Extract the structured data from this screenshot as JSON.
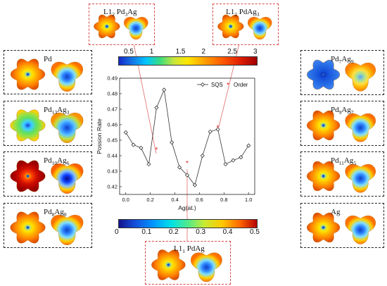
{
  "panels": {
    "left": [
      {
        "base": "Pd",
        "sub": ""
      },
      {
        "base": "Pd",
        "sub": "13",
        "base2": "Ag",
        "sub2": "3"
      },
      {
        "base": "Pd",
        "sub": "10",
        "base2": "Ag",
        "sub2": "6"
      },
      {
        "base": "Pd",
        "sub": "8",
        "base2": "Ag",
        "sub2": "8"
      }
    ],
    "right": [
      {
        "base": "Pd",
        "sub": "7",
        "base2": "Ag",
        "sub2": "9"
      },
      {
        "base": "Pd",
        "sub": "9",
        "base2": "Ag",
        "sub2": "7"
      },
      {
        "base": "Pd",
        "sub": "11",
        "base2": "Ag",
        "sub2": "5"
      },
      {
        "base": "Ag",
        "sub": ""
      }
    ],
    "top": [
      {
        "pre": "L1",
        "presub": "2",
        "base": " Pd",
        "sub": "3",
        "base2": "Ag",
        "sub2": ""
      },
      {
        "pre": "L1",
        "presub": "2",
        "base": " PdAg",
        "sub": "3",
        "base2": "",
        "sub2": ""
      }
    ],
    "bottom": {
      "pre": "L1",
      "presub": "1",
      "base": " PdAg",
      "sub": ""
    }
  },
  "colorbar_top": {
    "ticks": [
      "0.5",
      "1",
      "1.5",
      "2",
      "2.5",
      "3"
    ]
  },
  "colorbar_bottom": {
    "ticks": [
      "0",
      "0.1",
      "0.2",
      "0.3",
      "0.4",
      "0.5"
    ]
  },
  "chart_data": {
    "type": "scatter",
    "xlabel": "Ag(at.)",
    "ylabel": "Possion Rate",
    "xlim": [
      -0.05,
      1.05
    ],
    "ylim": [
      0.415,
      0.49
    ],
    "xticks": [
      "0.0",
      "0.2",
      "0.4",
      "0.6",
      "0.8",
      "1.0"
    ],
    "yticks": [
      "0.42",
      "0.43",
      "0.44",
      "0.45",
      "0.46",
      "0.47",
      "0.48",
      "0.49"
    ],
    "legend_position": "top-right",
    "series": [
      {
        "name": "SQS",
        "style": "line-diamond",
        "color": "#333333",
        "x": [
          0.0,
          0.0625,
          0.125,
          0.1875,
          0.25,
          0.3125,
          0.375,
          0.4375,
          0.5,
          0.5625,
          0.625,
          0.6875,
          0.75,
          0.8125,
          0.875,
          0.9375,
          1.0
        ],
        "y": [
          0.455,
          0.447,
          0.445,
          0.4345,
          0.471,
          0.4825,
          0.4485,
          0.4325,
          0.4275,
          0.421,
          0.44,
          0.4555,
          0.457,
          0.4345,
          0.437,
          0.439,
          0.4465
        ]
      },
      {
        "name": "Order",
        "style": "star",
        "color": "#e02020",
        "x": [
          0.25,
          0.5,
          0.75
        ],
        "y": [
          0.444,
          0.4355,
          0.4585
        ]
      }
    ]
  }
}
